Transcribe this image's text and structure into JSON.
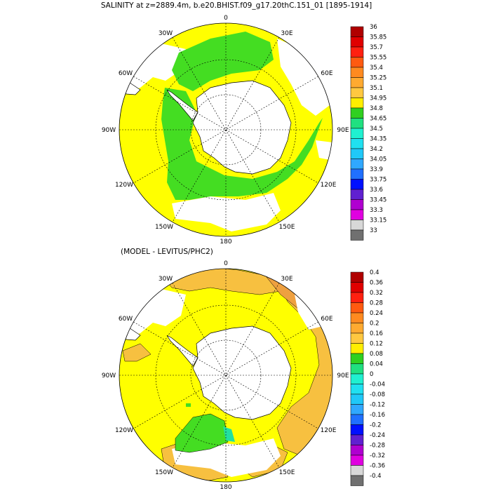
{
  "top_panel": {
    "title": "SALINITY at z=2889.4m, b.e20.BHIST.f09_g17.20thC.151_01 [1895-1914]",
    "lon_labels": {
      "n": "0",
      "ne": "30E",
      "nw": "30W",
      "e60": "60E",
      "w60": "60W",
      "e": "90E",
      "w": "90W",
      "e120": "120E",
      "w120": "120W",
      "e150": "150E",
      "w150": "150W",
      "s": "180"
    },
    "colorbar": {
      "labels": [
        "36",
        "35.85",
        "35.7",
        "35.55",
        "35.4",
        "35.25",
        "35.1",
        "34.95",
        "34.8",
        "34.65",
        "34.5",
        "34.35",
        "34.2",
        "34.05",
        "33.9",
        "33.75",
        "33.6",
        "33.45",
        "33.3",
        "33.15",
        "33"
      ],
      "colors": [
        "#b00000",
        "#e00000",
        "#ff2010",
        "#ff5a10",
        "#ff8a20",
        "#ffaa30",
        "#ffc840",
        "#ffee00",
        "#30d020",
        "#20e080",
        "#20f0d0",
        "#20e0f0",
        "#20c8f8",
        "#30a8ff",
        "#2070ff",
        "#0010ff",
        "#6020d0",
        "#b000d0",
        "#e000e0",
        "#d8d8d8",
        "#707070"
      ]
    }
  },
  "bottom_panel": {
    "title": "(MODEL - LEVITUS/PHC2)",
    "lon_labels": {
      "n": "0",
      "ne": "30E",
      "nw": "30W",
      "e60": "60E",
      "w60": "60W",
      "e": "90E",
      "w": "90W",
      "e120": "120E",
      "w120": "120W",
      "e150": "150E",
      "w150": "150W",
      "s": "180"
    },
    "colorbar": {
      "labels": [
        "0.4",
        "0.36",
        "0.32",
        "0.28",
        "0.24",
        "0.2",
        "0.16",
        "0.12",
        "0.08",
        "0.04",
        "0",
        "-0.04",
        "-0.08",
        "-0.12",
        "-0.16",
        "-0.2",
        "-0.24",
        "-0.28",
        "-0.32",
        "-0.36",
        "-0.4"
      ],
      "colors": [
        "#b00000",
        "#e00000",
        "#ff2010",
        "#ff5a10",
        "#ff8a20",
        "#ffaa30",
        "#ffc840",
        "#ffee00",
        "#30d020",
        "#20e080",
        "#20f0d0",
        "#20e0f0",
        "#20c8f8",
        "#30a8ff",
        "#2070ff",
        "#0010ff",
        "#6020d0",
        "#b000d0",
        "#e000e0",
        "#d8d8d8",
        "#707070"
      ]
    }
  },
  "map_colors": {
    "yellow": "#ffff00",
    "green": "#44dd22",
    "orange": "#f7c040",
    "dark_orange": "#eea040",
    "teal": "#22e0a0"
  }
}
